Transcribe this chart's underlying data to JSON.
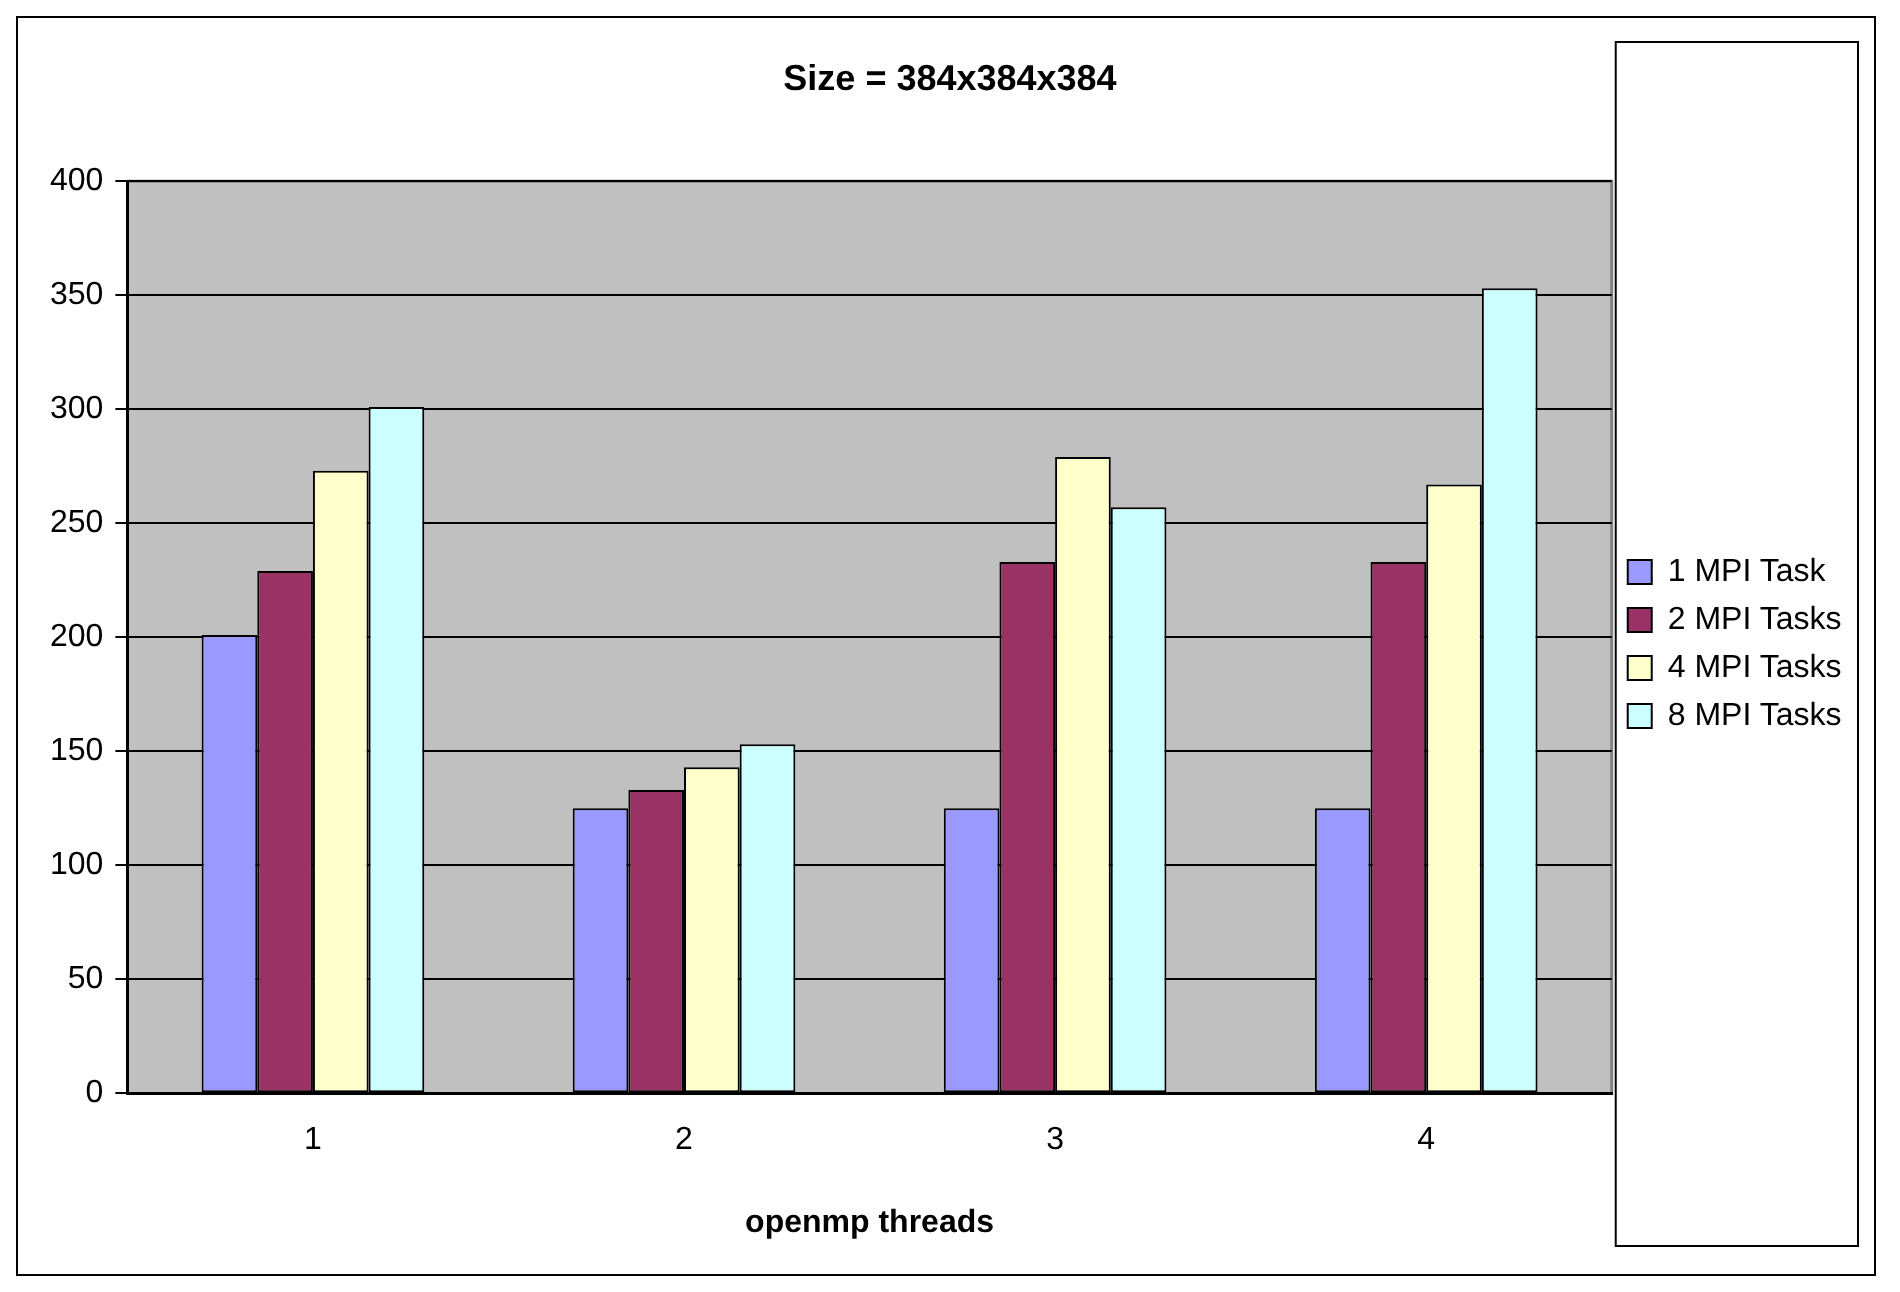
{
  "chart_data": {
    "type": "bar",
    "title": "Size = 384x384x384",
    "xlabel": "openmp threads",
    "categories": [
      "1",
      "2",
      "3",
      "4"
    ],
    "series": [
      {
        "name": "1 MPI Task",
        "color": "#9999ff",
        "values": [
          201,
          125,
          125,
          125
        ]
      },
      {
        "name": "2 MPI Tasks",
        "color": "#993366",
        "values": [
          229,
          133,
          233,
          233
        ]
      },
      {
        "name": "4 MPI Tasks",
        "color": "#ffffcc",
        "values": [
          273,
          143,
          279,
          267
        ]
      },
      {
        "name": "8 MPI Tasks",
        "color": "#ccffff",
        "values": [
          301,
          153,
          257,
          353
        ]
      }
    ],
    "ylim": [
      0,
      400
    ],
    "yticks": [
      0,
      50,
      100,
      150,
      200,
      250,
      300,
      350,
      400
    ],
    "grid": "y",
    "legend": "right"
  }
}
